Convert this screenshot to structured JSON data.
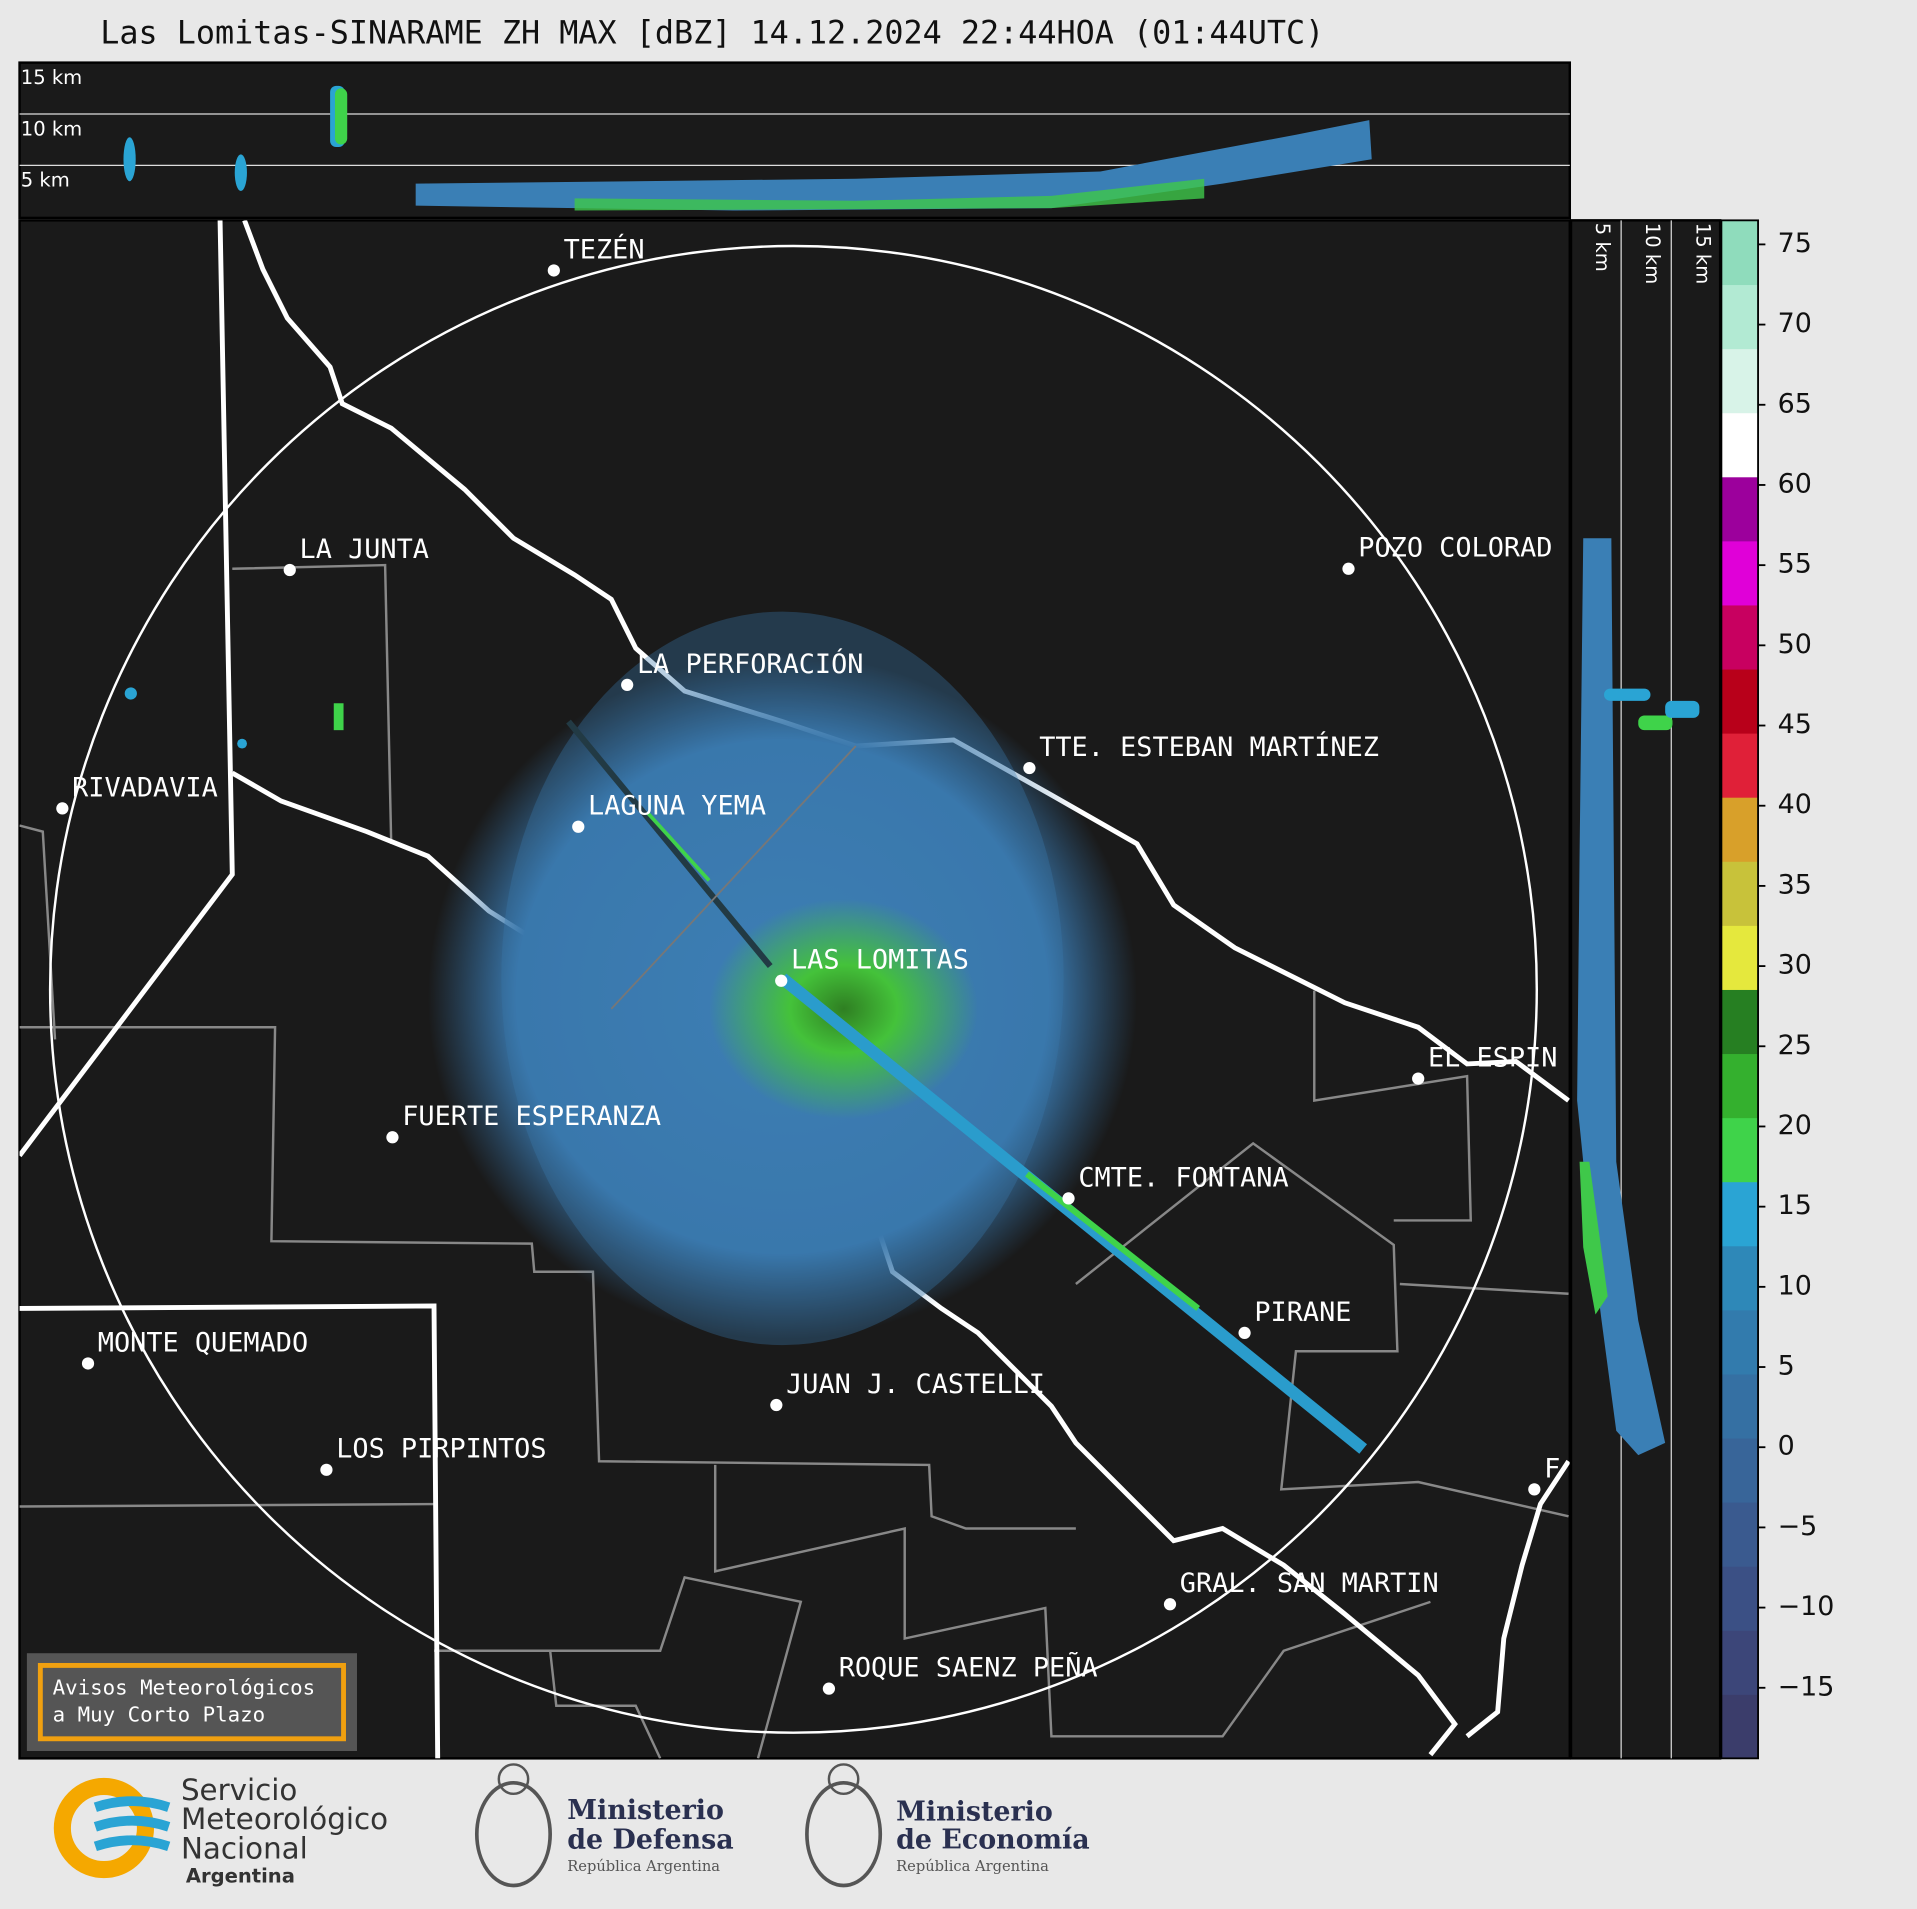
{
  "title": "Las Lomitas-SINARAME ZH MAX [dBZ] 14.12.2024 22:44HOA (01:44UTC)",
  "cross_section_top": {
    "labels": [
      "15 km",
      "10 km",
      "5 km"
    ]
  },
  "cross_section_right": {
    "labels": [
      "5 km",
      "10 km",
      "15 km"
    ]
  },
  "places": [
    "TEZÉN",
    "LA JUNTA",
    "LA PERFORACIÓN",
    "POZO COLORAD",
    "TTE. ESTEBAN MARTÍNEZ",
    "RIVADAVIA",
    "LAGUNA YEMA",
    "LAS LOMITAS",
    "FUERTE ESPERANZA",
    "EL ESPIN",
    "CMTE. FONTANA",
    "PIRANE",
    "MONTE QUEMADO",
    "JUAN J. CASTELLI",
    "LOS PIRPINTOS",
    "F",
    "GRAL. SAN MARTIN",
    "ROQUE SAENZ PEÑA"
  ],
  "colorbar": {
    "lim": [
      -19.4,
      76.5
    ],
    "ticks": [
      {
        "value": -15,
        "label": "−15"
      },
      {
        "value": -10,
        "label": "−10"
      },
      {
        "value": -5,
        "label": "−5"
      },
      0,
      5,
      10,
      15,
      20,
      25,
      30,
      35,
      40,
      45,
      50,
      55,
      60,
      65,
      70,
      75
    ],
    "colors": [
      "#3b3d6b",
      "#3c4679",
      "#3b5085",
      "#3a5a8f",
      "#386599",
      "#3570a3",
      "#327bad",
      "#2e88b8",
      "#2aa4d4",
      "#3fd34a",
      "#34b02e",
      "#267f22",
      "#e5e83d",
      "#c8c23a",
      "#d8a02a",
      "#e02038",
      "#b8001a",
      "#c80060",
      "#e000d8",
      "#9c009c",
      "#ffffff",
      "#d8f3e8",
      "#b2ead3",
      "#8fdcbc"
    ]
  },
  "warning_box": {
    "lines": [
      "Avisos Meteorológicos",
      "a Muy Corto Plazo"
    ]
  },
  "logos": {
    "smn": [
      "Servicio",
      "Meteorológico",
      "Nacional",
      "Argentina"
    ],
    "defensa": [
      "Ministerio",
      "de Defensa",
      "República Argentina"
    ],
    "economia": [
      "Ministerio",
      "de Economía",
      "República Argentina"
    ]
  }
}
